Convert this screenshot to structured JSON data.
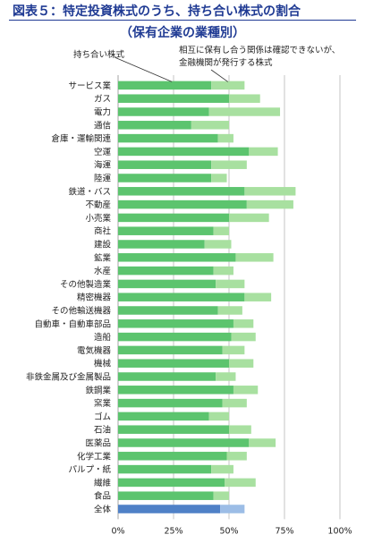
{
  "title": "図表５：特定投資株式のうち、持ち合い株式の割合",
  "subtitle": "（保有企業の業種別）",
  "legend": {
    "held_label": "持ち合い株式",
    "cross_label_line1": "相互に保有し合う関係は確認できないが、",
    "cross_label_line2": "金融機関が発行する株式"
  },
  "colors": {
    "held": "#5cc46e",
    "cross": "#a8e0a0",
    "total_held": "#4f81c7",
    "total_cross": "#9cbde6",
    "title": "#1f3a93",
    "grid": "#b5b5b5"
  },
  "chart_data": {
    "type": "bar",
    "orientation": "horizontal",
    "stacked": true,
    "title": "図表５：特定投資株式のうち、持ち合い株式の割合",
    "subtitle": "（保有企業の業種別）",
    "xlim": [
      0,
      100
    ],
    "x_ticks": [
      "0%",
      "25%",
      "50%",
      "75%",
      "100%"
    ],
    "categories": [
      "サービス業",
      "ガス",
      "電力",
      "通信",
      "倉庫・運輸関連",
      "空運",
      "海運",
      "陸運",
      "鉄道・バス",
      "不動産",
      "小売業",
      "商社",
      "建設",
      "鉱業",
      "水産",
      "その他製造業",
      "精密機器",
      "その他輸送機器",
      "自動車・自動車部品",
      "造船",
      "電気機器",
      "機械",
      "非鉄金属及び金属製品",
      "鉄鋼業",
      "窯業",
      "ゴム",
      "石油",
      "医薬品",
      "化学工業",
      "パルプ・紙",
      "繊維",
      "食品",
      "全体"
    ],
    "series": [
      {
        "name": "持ち合い株式",
        "values": [
          42,
          50,
          41,
          33,
          45,
          59,
          42,
          42,
          57,
          58,
          50,
          43,
          39,
          53,
          43,
          44,
          57,
          45,
          52,
          51,
          47,
          50,
          44,
          52,
          47,
          41,
          50,
          59,
          49,
          42,
          48,
          43,
          46
        ]
      },
      {
        "name": "相互に保有し合う関係は確認できないが、金融機関が発行する株式",
        "values": [
          15,
          14,
          32,
          17,
          7,
          13,
          16,
          7,
          23,
          21,
          18,
          7,
          12,
          17,
          9,
          13,
          12,
          11,
          9,
          11,
          10,
          11,
          9,
          11,
          11,
          9,
          10,
          12,
          9,
          10,
          14,
          7,
          11
        ]
      }
    ],
    "grid": true
  }
}
